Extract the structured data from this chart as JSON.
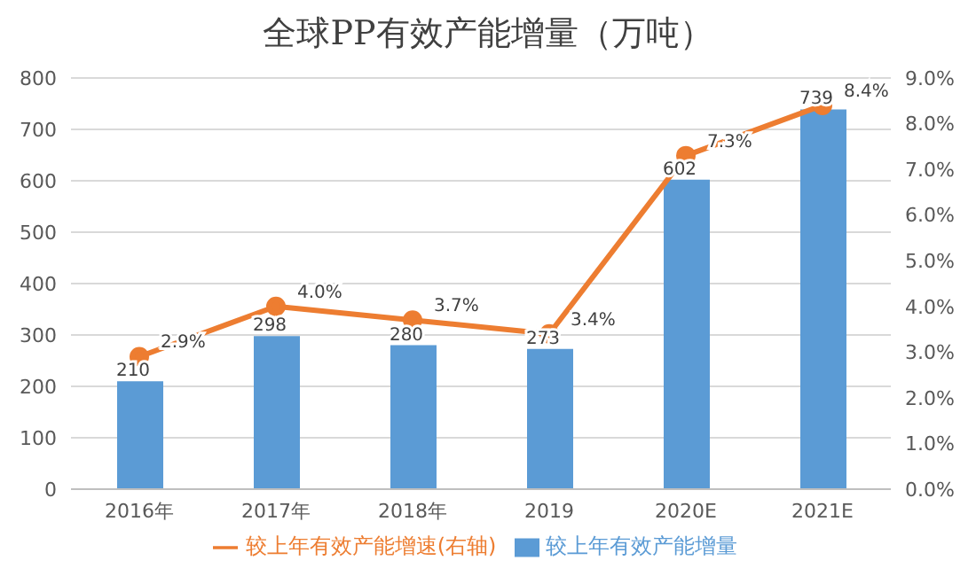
{
  "chart_data": {
    "type": "bar",
    "title": "全球PP有效产能增量（万吨）",
    "categories": [
      "2016年",
      "2017年",
      "2018年",
      "2019",
      "2020E",
      "2021E"
    ],
    "series": [
      {
        "name": "较上年有效产能增量",
        "color": "#5b9bd5",
        "values": [
          210,
          298,
          280,
          273,
          602,
          739
        ],
        "value_labels": [
          "210",
          "298",
          "280",
          "273",
          "602",
          "739"
        ]
      },
      {
        "name": "较上年有效产能增速(右轴)",
        "type": "line",
        "axis": "y2",
        "color": "#ed7d31",
        "marker": "circle",
        "values": [
          2.9,
          4.0,
          3.7,
          3.4,
          7.3,
          8.4
        ],
        "value_labels": [
          "2.9%",
          "4.0%",
          "3.7%",
          "3.4%",
          "7.3%",
          "8.4%"
        ]
      }
    ],
    "ylim": [
      0,
      800
    ],
    "yticks": [
      0,
      100,
      200,
      300,
      400,
      500,
      600,
      700,
      800
    ],
    "y2lim": [
      0,
      9
    ],
    "y2ticks": [
      {
        "value": 0,
        "label": "0.0%"
      },
      {
        "value": 1,
        "label": "1.0%"
      },
      {
        "value": 2,
        "label": "2.0%"
      },
      {
        "value": 3,
        "label": "3.0%"
      },
      {
        "value": 4,
        "label": "4.0%"
      },
      {
        "value": 5,
        "label": "5.0%"
      },
      {
        "value": 6,
        "label": "6.0%"
      },
      {
        "value": 7,
        "label": "7.0%"
      },
      {
        "value": 8,
        "label": "8.0%"
      },
      {
        "value": 9,
        "label": "9.0%"
      }
    ],
    "grid": "y",
    "legend": "bottom"
  }
}
